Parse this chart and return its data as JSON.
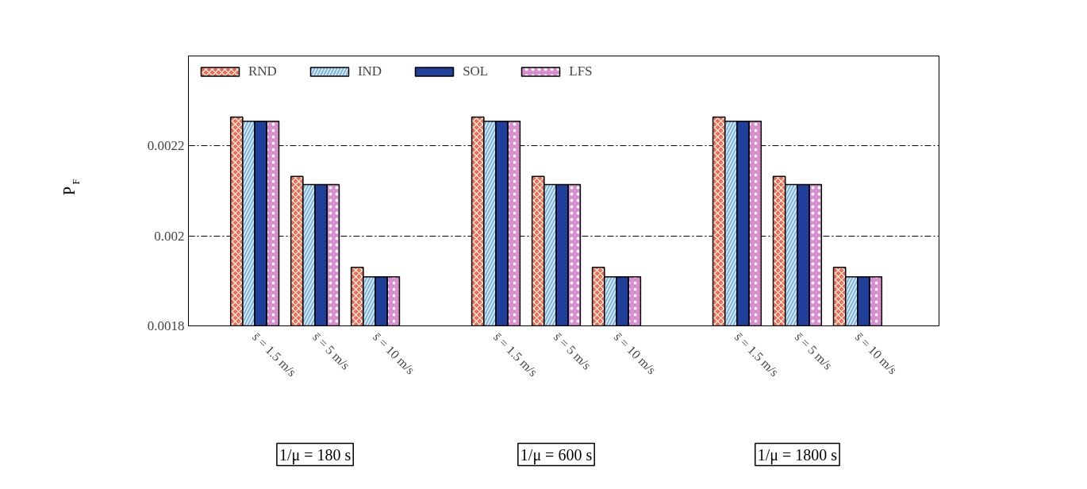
{
  "chart_data": {
    "type": "bar",
    "ylabel": "P$_{F}$",
    "categories": [
      "s̄ = 1.5 m/s",
      "s̄ = 5 m/s",
      "s̄ = 10 m/s",
      "s̄ = 1.5 m/s",
      "s̄ = 5 m/s",
      "s̄ = 10 m/s",
      "s̄ = 1.5 m/s",
      "s̄ = 5 m/s",
      "s̄ = 10 m/s"
    ],
    "series": [
      {
        "name": "RND",
        "color": "#f26c4f",
        "values": [
          0.002264,
          0.002132,
          0.00193,
          0.002264,
          0.002132,
          0.00193,
          0.002264,
          0.002132,
          0.00193
        ]
      },
      {
        "name": "IND",
        "color": "#7fb8e6",
        "values": [
          0.002255,
          0.002114,
          0.001909,
          0.002255,
          0.002114,
          0.001909,
          0.002255,
          0.002114,
          0.001909
        ]
      },
      {
        "name": "SOL",
        "color": "#1f3f99",
        "values": [
          0.002255,
          0.002114,
          0.001909,
          0.002255,
          0.002114,
          0.001909,
          0.002255,
          0.002114,
          0.001909
        ]
      },
      {
        "name": "LFS",
        "color": "#d98cd0",
        "values": [
          0.002255,
          0.002114,
          0.001909,
          0.002255,
          0.002114,
          0.001909,
          0.002255,
          0.002114,
          0.001909
        ]
      }
    ],
    "ylim": [
      0.0018,
      0.0024
    ],
    "yticks": [
      0.0018,
      0.002,
      0.0022
    ],
    "grid": "y",
    "legend": "top left",
    "annotations": [
      "1/μ = 180 s",
      "1/μ = 600 s",
      "1/μ = 1800 s"
    ]
  }
}
